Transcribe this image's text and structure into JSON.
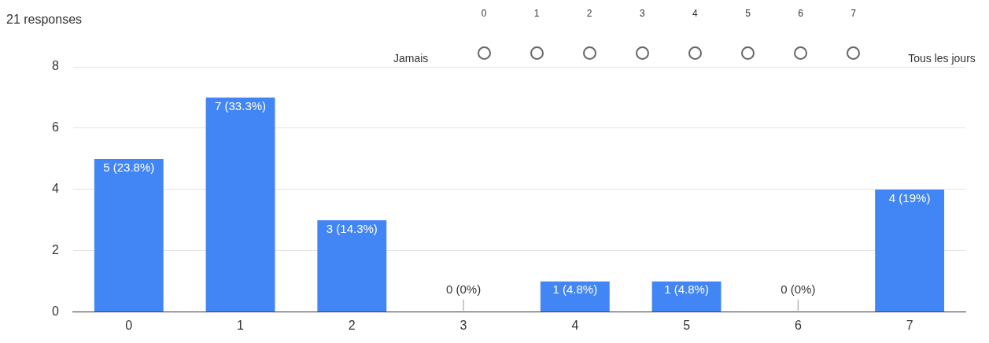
{
  "chart_data": {
    "type": "bar",
    "categories": [
      "0",
      "1",
      "2",
      "3",
      "4",
      "5",
      "6",
      "7"
    ],
    "values": [
      5,
      7,
      3,
      0,
      1,
      1,
      0,
      4
    ],
    "color": "#4285f4",
    "value_labels": [
      "5 (23.8%)",
      "7 (33.3%)",
      "3 (14.3%)",
      "0 (0%)",
      "1 (4.8%)",
      "1 (4.8%)",
      "0 (0%)",
      "4 (19%)"
    ],
    "ylim": [
      0,
      8
    ],
    "yticks": [
      0,
      2,
      4,
      6,
      8
    ],
    "grid": "y",
    "legend": false,
    "annotations": [
      "21 responses",
      "Jamais",
      "Tous les jours"
    ]
  }
}
